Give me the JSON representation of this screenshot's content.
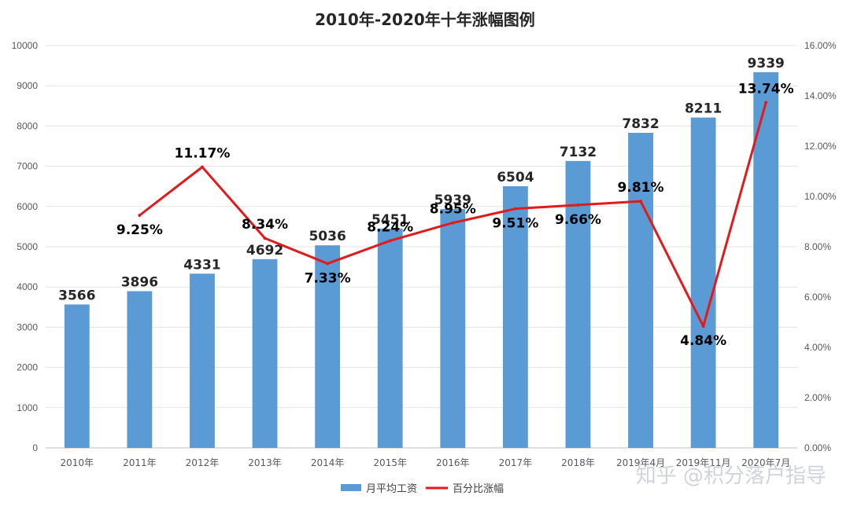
{
  "chart_data": {
    "type": "bar+line",
    "title": "2010年-2020年十年涨幅图例",
    "categories": [
      "2010年",
      "2011年",
      "2012年",
      "2013年",
      "2014年",
      "2015年",
      "2016年",
      "2017年",
      "2018年",
      "2019年4月",
      "2019年11月",
      "2020年7月"
    ],
    "y_left": {
      "min": 0,
      "max": 10000,
      "step": 1000,
      "ticks": [
        "0",
        "1000",
        "2000",
        "3000",
        "4000",
        "5000",
        "6000",
        "7000",
        "8000",
        "9000",
        "10000"
      ]
    },
    "y_right": {
      "min": 0,
      "max": 16,
      "step": 2,
      "ticks": [
        "0.00%",
        "2.00%",
        "4.00%",
        "6.00%",
        "8.00%",
        "10.00%",
        "12.00%",
        "14.00%",
        "16.00%"
      ]
    },
    "series": [
      {
        "name": "月平均工资",
        "type": "bar",
        "axis": "left",
        "color": "#5b9bd5",
        "values": [
          3566,
          3896,
          4331,
          4692,
          5036,
          5451,
          5939,
          6504,
          7132,
          7832,
          8211,
          9339
        ],
        "labels": [
          "3566",
          "3896",
          "4331",
          "4692",
          "5036",
          "5451",
          "5939",
          "6504",
          "7132",
          "7832",
          "8211",
          "9339"
        ]
      },
      {
        "name": "百分比涨幅",
        "type": "line",
        "axis": "right",
        "color": "#e31a1c",
        "values": [
          null,
          9.25,
          11.17,
          8.34,
          7.33,
          8.24,
          8.95,
          9.51,
          9.66,
          9.81,
          4.84,
          13.74
        ],
        "labels": [
          "",
          "9.25%",
          "11.17%",
          "8.34%",
          "7.33%",
          "8.24%",
          "8.95%",
          "9.51%",
          "9.66%",
          "9.81%",
          "4.84%",
          "13.74%"
        ]
      }
    ],
    "grid": true,
    "legend": "bottom-center"
  },
  "watermark": "知乎 @积分落户指导"
}
